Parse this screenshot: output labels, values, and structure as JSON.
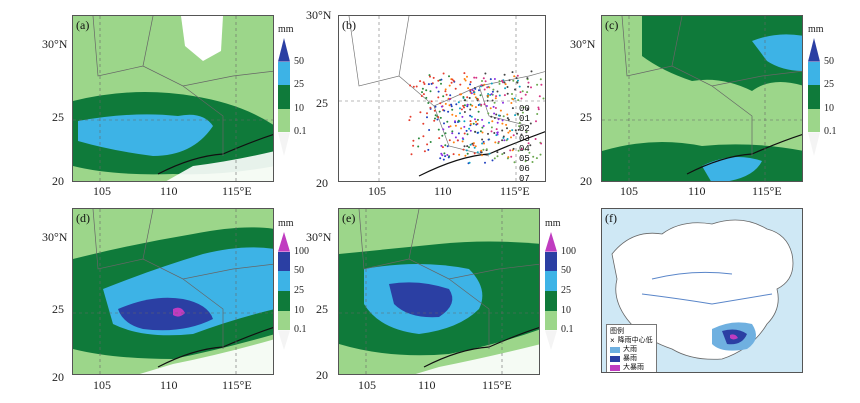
{
  "chart_data": [
    {
      "id": "a",
      "panel_label": "(a)",
      "type": "heatmap",
      "x_ticks": [
        "105",
        "110",
        "115°E"
      ],
      "y_ticks": [
        "30°N",
        "25",
        "20"
      ],
      "xlim": [
        103,
        118
      ],
      "ylim": [
        20,
        32
      ],
      "colorbar": {
        "unit": "mm",
        "levels": [
          "50",
          "25",
          "10",
          "0.1"
        ],
        "colors": [
          "#2b3fa3",
          "#3db3e6",
          "#0f7a3a",
          "#9cd68a",
          "#ffffff"
        ]
      }
    },
    {
      "id": "b",
      "panel_label": "(b)",
      "type": "scatter",
      "x_ticks": [
        "105",
        "110",
        "115°E"
      ],
      "y_ticks": [
        "30°N",
        "25",
        "20"
      ],
      "xlim": [
        103,
        118
      ],
      "ylim": [
        20,
        32
      ],
      "legend": [
        "00",
        "01",
        "02",
        "03",
        "04",
        "05",
        "06",
        "07",
        "08"
      ],
      "series_colors": [
        "#e63d2e",
        "#2b8a3e",
        "#1f3fbf",
        "#8a2be2",
        "#ff7f0e",
        "#0aa3c2",
        "#444444",
        "#d63384",
        "#6aa84f"
      ]
    },
    {
      "id": "c",
      "panel_label": "(c)",
      "type": "heatmap",
      "x_ticks": [
        "105",
        "110",
        "115°E"
      ],
      "y_ticks": [
        "30°N",
        "25",
        "20"
      ],
      "xlim": [
        103,
        118
      ],
      "ylim": [
        20,
        32
      ],
      "colorbar": {
        "unit": "mm",
        "levels": [
          "50",
          "25",
          "10",
          "0.1"
        ],
        "colors": [
          "#2b3fa3",
          "#3db3e6",
          "#0f7a3a",
          "#9cd68a",
          "#ffffff"
        ]
      }
    },
    {
      "id": "d",
      "panel_label": "(d)",
      "type": "heatmap",
      "x_ticks": [
        "105",
        "110",
        "115°E"
      ],
      "y_ticks": [
        "30°N",
        "25",
        "20"
      ],
      "xlim": [
        103,
        118
      ],
      "ylim": [
        20,
        32
      ],
      "colorbar": {
        "unit": "mm",
        "levels": [
          "100",
          "50",
          "25",
          "10",
          "0.1"
        ],
        "colors": [
          "#c03cc0",
          "#2b3fa3",
          "#3db3e6",
          "#0f7a3a",
          "#9cd68a",
          "#ffffff"
        ]
      }
    },
    {
      "id": "e",
      "panel_label": "(e)",
      "type": "heatmap",
      "x_ticks": [
        "105",
        "110",
        "115°E"
      ],
      "y_ticks": [
        "30°N",
        "25",
        "20"
      ],
      "xlim": [
        103,
        118
      ],
      "ylim": [
        20,
        32
      ],
      "colorbar": {
        "unit": "mm",
        "levels": [
          "100",
          "50",
          "25",
          "10",
          "0.1"
        ],
        "colors": [
          "#c03cc0",
          "#2b3fa3",
          "#3db3e6",
          "#0f7a3a",
          "#9cd68a",
          "#ffffff"
        ]
      }
    },
    {
      "id": "f",
      "panel_label": "(f)",
      "type": "map",
      "legend": {
        "title": "图例",
        "items": [
          {
            "label": "降雨中心低",
            "color": "#000000"
          },
          {
            "label": "大雨",
            "color": "#6fb0e0"
          },
          {
            "label": "暴雨",
            "color": "#2b3fa3"
          },
          {
            "label": "大暴雨",
            "color": "#c03cc0"
          }
        ]
      }
    }
  ]
}
